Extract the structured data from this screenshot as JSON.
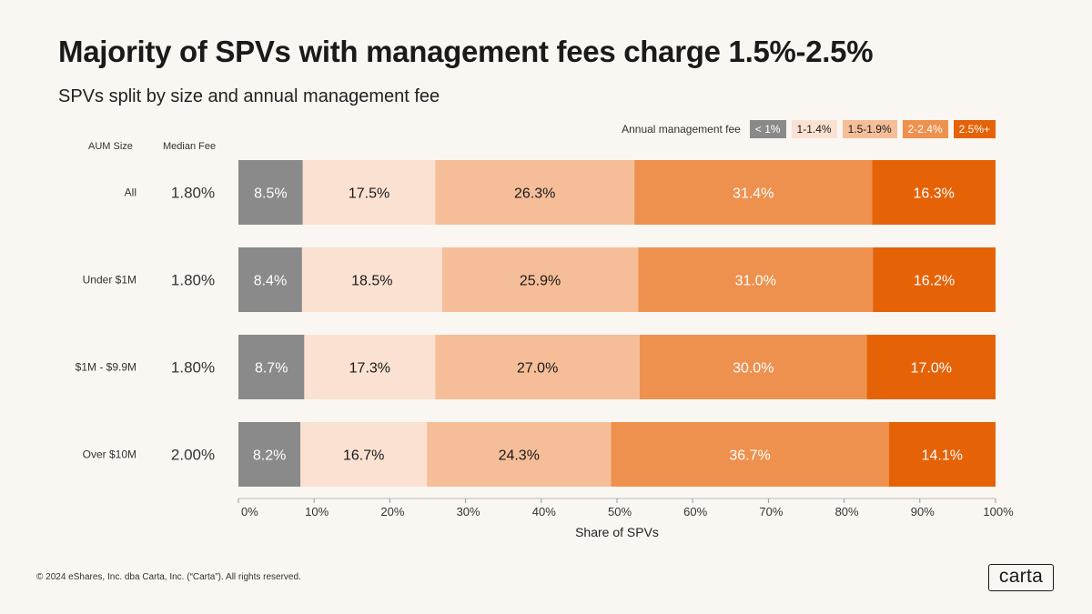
{
  "chart_data": {
    "type": "bar",
    "orientation": "horizontal",
    "stacked": true,
    "title": "Majority of SPVs with management fees  charge 1.5%-2.5%",
    "subtitle": "SPVs split by size and annual management fee",
    "xlabel": "Share of SPVs",
    "ylabel": "AUM Size",
    "median_fee_label": "Median Fee",
    "legend_title": "Annual management fee",
    "legend_position": "top-right",
    "xlim": [
      0,
      100
    ],
    "x_ticks": [
      "0%",
      "10%",
      "20%",
      "30%",
      "40%",
      "50%",
      "60%",
      "70%",
      "80%",
      "90%",
      "100%"
    ],
    "categories": [
      "All",
      "Under $1M",
      "$1M - $9.9M",
      "Over $10M"
    ],
    "median_fees": [
      "1.80%",
      "1.80%",
      "1.80%",
      "2.00%"
    ],
    "series": [
      {
        "name": "< 1%",
        "color": "#8a8a8a",
        "text_color": "#ffffff",
        "values": [
          8.5,
          8.4,
          8.7,
          8.2
        ],
        "labels": [
          "8.5%",
          "8.4%",
          "8.7%",
          "8.2%"
        ]
      },
      {
        "name": "1-1.4%",
        "color": "#fbe1d2",
        "text_color": "#1a1a1a",
        "values": [
          17.5,
          18.5,
          17.3,
          16.7
        ],
        "labels": [
          "17.5%",
          "18.5%",
          "17.3%",
          "16.7%"
        ]
      },
      {
        "name": "1.5-1.9%",
        "color": "#f5be98",
        "text_color": "#1a1a1a",
        "values": [
          26.3,
          25.9,
          27.0,
          24.3
        ],
        "labels": [
          "26.3%",
          "25.9%",
          "27.0%",
          "24.3%"
        ]
      },
      {
        "name": "2-2.4%",
        "color": "#ee914e",
        "text_color": "#ffffff",
        "values": [
          31.4,
          31.0,
          30.0,
          36.7
        ],
        "labels": [
          "31.4%",
          "31.0%",
          "30.0%",
          "36.7%"
        ]
      },
      {
        "name": "2.5%+",
        "color": "#e66207",
        "text_color": "#ffffff",
        "values": [
          16.3,
          16.2,
          17.0,
          14.1
        ],
        "labels": [
          "16.3%",
          "16.2%",
          "17.0%",
          "14.1%"
        ]
      }
    ]
  },
  "footer": {
    "copyright": "© 2024 eShares, Inc. dba Carta, Inc. (“Carta”). All rights reserved.",
    "logo": "carta"
  }
}
